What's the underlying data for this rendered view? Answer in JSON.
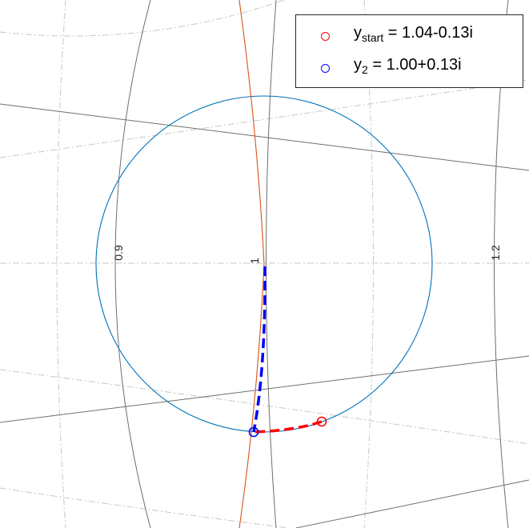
{
  "chart": {
    "tick_labels": [
      "0.9",
      "1",
      "1.2"
    ]
  },
  "legend": {
    "items": [
      {
        "symbol": "y",
        "subscript": "start",
        "value": " = 1.04-0.13i",
        "color": "#ff0000"
      },
      {
        "symbol": "y",
        "subscript": "2",
        "value": " = 1.00+0.13i",
        "color": "#0000ff"
      }
    ]
  },
  "colors": {
    "circle": "#0072bd",
    "orange_curve": "#d95319",
    "grid_solid": "#6e6e6e",
    "grid_dashdot": "#c8c8c8",
    "path_red": "#ff0000",
    "path_blue": "#0000ff"
  }
}
